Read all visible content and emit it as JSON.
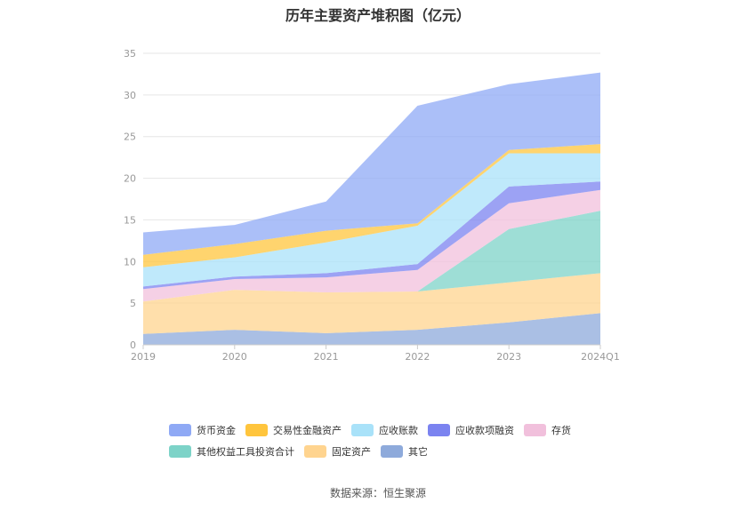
{
  "chart_data": {
    "type": "area",
    "stacked": true,
    "title": "历年主要资产堆积图（亿元）",
    "categories": [
      "2019",
      "2020",
      "2021",
      "2022",
      "2023",
      "2024Q1"
    ],
    "ylim": [
      0,
      35
    ],
    "yticks": [
      0,
      5,
      10,
      15,
      20,
      25,
      30,
      35
    ],
    "grid": true,
    "legend_position": "bottom",
    "series": [
      {
        "name": "其它",
        "color": "#8eaadb",
        "values": [
          1.3,
          1.8,
          1.4,
          1.8,
          2.7,
          3.8
        ]
      },
      {
        "name": "固定资产",
        "color": "#ffd48f",
        "values": [
          3.9,
          4.8,
          4.9,
          4.6,
          4.8,
          4.8
        ]
      },
      {
        "name": "其他权益工具投资合计",
        "color": "#7dd3c8",
        "values": [
          0.0,
          0.0,
          0.0,
          0.0,
          6.4,
          7.5
        ]
      },
      {
        "name": "存货",
        "color": "#f1c0dc",
        "values": [
          1.5,
          1.3,
          1.8,
          2.6,
          3.1,
          2.5
        ]
      },
      {
        "name": "应收款项融资",
        "color": "#7b83f0",
        "values": [
          0.3,
          0.3,
          0.5,
          0.7,
          2.0,
          1.0
        ]
      },
      {
        "name": "应收账款",
        "color": "#a9e2f9",
        "values": [
          2.3,
          2.3,
          3.7,
          4.6,
          4.0,
          3.4
        ]
      },
      {
        "name": "交易性金融资产",
        "color": "#ffc53d",
        "values": [
          1.5,
          1.6,
          1.4,
          0.3,
          0.4,
          1.1
        ]
      },
      {
        "name": "货币资金",
        "color": "#8fa9f5",
        "values": [
          2.7,
          2.3,
          3.5,
          14.1,
          7.9,
          8.6
        ]
      }
    ]
  },
  "legend": {
    "row1": [
      "货币资金",
      "交易性金融资产",
      "应收账款",
      "应收款项融资",
      "存货"
    ],
    "row2": [
      "其他权益工具投资合计",
      "固定资产",
      "其它"
    ]
  },
  "source": "数据来源：恒生聚源"
}
